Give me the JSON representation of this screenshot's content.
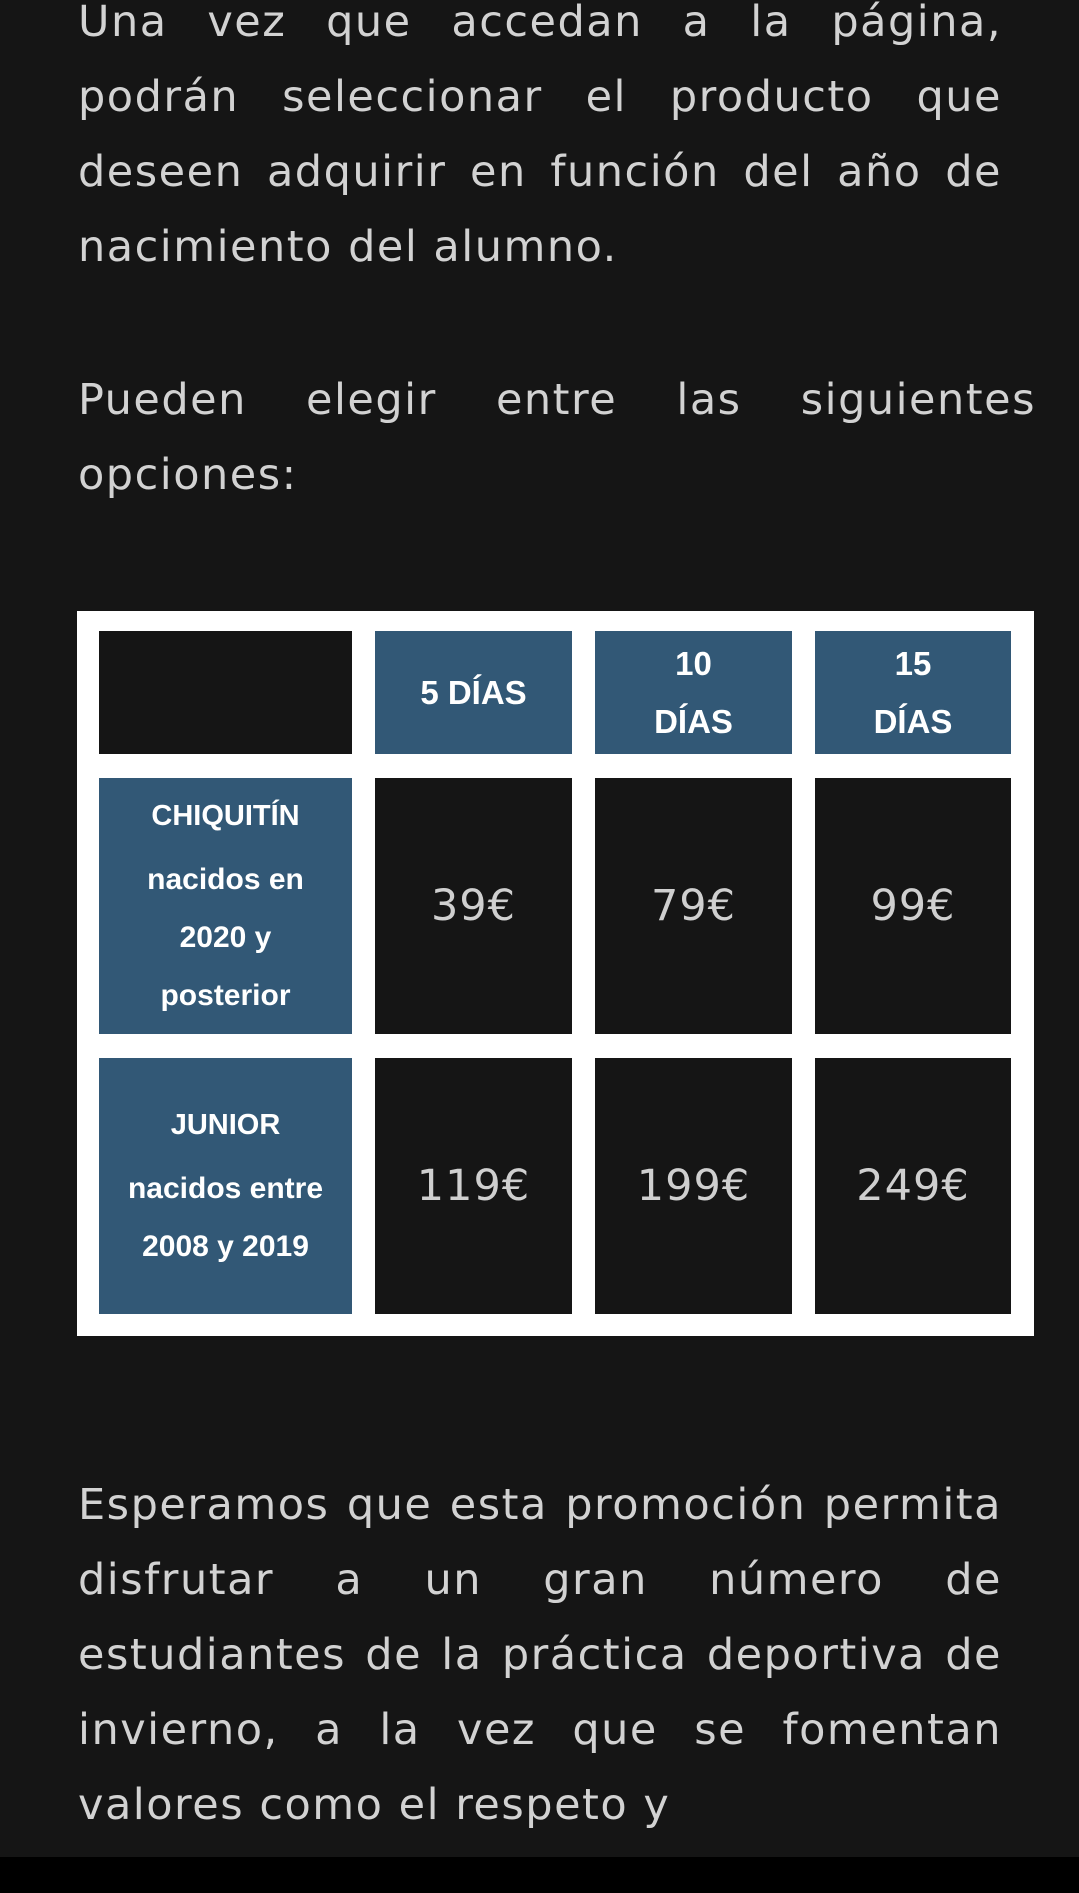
{
  "paragraphs": [
    "Una vez que accedan a la página, podrán seleccionar el producto que deseen adquirir en función del año de nacimiento del alumno.",
    "Pueden elegir entre las siguientes opciones:",
    "Esperamos que esta promoción permita disfrutar a un gran número de estudiantes de la práctica deportiva de invierno, a la vez que se fomentan valores como el respeto y"
  ],
  "table": {
    "columns": [
      "5 DÍAS",
      "10 DÍAS",
      "15 DÍAS"
    ],
    "rows": [
      {
        "title": "CHIQUITÍN",
        "subtitle": "nacidos en 2020 y posterior",
        "prices": [
          "39€",
          "79€",
          "99€"
        ]
      },
      {
        "title": "JUNIOR",
        "subtitle": "nacidos entre 2008 y 2019",
        "prices": [
          "119€",
          "199€",
          "249€"
        ]
      }
    ]
  },
  "colors": {
    "header_blue": "#325876",
    "background": "#151515",
    "table_border": "#ffffff"
  }
}
